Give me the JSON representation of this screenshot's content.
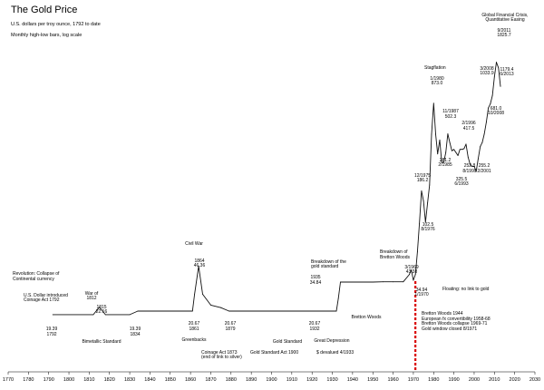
{
  "chart_data": {
    "type": "line",
    "title": "The Gold Price",
    "subtitle": "U.S. dollars per troy ounce, 1792 to date",
    "note": "Monthly high-low bars, log scale",
    "y_scale": "log",
    "xlim": [
      1770,
      2030
    ],
    "x_ticks": [
      1770,
      1780,
      1790,
      1800,
      1810,
      1820,
      1830,
      1840,
      1850,
      1860,
      1870,
      1880,
      1890,
      1900,
      1910,
      1920,
      1930,
      1940,
      1950,
      1960,
      1970,
      1980,
      1990,
      2000,
      2010,
      2020,
      2030
    ],
    "grid": false,
    "series": [
      {
        "x": [
          1792,
          1812,
          1815,
          1818,
          1830,
          1834,
          1836,
          1840,
          1850,
          1861,
          1862,
          1864,
          1866,
          1870,
          1875,
          1879,
          1880,
          1900,
          1910,
          1925,
          1927,
          1929,
          1932,
          1933,
          1934,
          1938,
          1940,
          1950,
          1955,
          1960,
          1965,
          1968,
          1969,
          1970,
          1971,
          1972,
          1973,
          1974,
          1975,
          1976,
          1977,
          1978,
          1979,
          1980,
          1981,
          1982,
          1983,
          1984,
          1985,
          1986,
          1987,
          1988,
          1989,
          1990,
          1991,
          1992,
          1993,
          1994,
          1995,
          1996,
          1997,
          1998,
          1999,
          2000,
          2001,
          2002,
          2003,
          2004,
          2005,
          2006,
          2007,
          2008,
          2009,
          2010,
          2011,
          2012,
          2013
        ],
        "y": [
          19.39,
          19.39,
          22.16,
          19.39,
          19.39,
          20.67,
          20.67,
          20.67,
          20.67,
          20.67,
          28,
          46.36,
          28,
          23,
          22,
          20.67,
          20.67,
          20.67,
          20.67,
          20.67,
          20.67,
          20.67,
          20.67,
          26,
          34.84,
          34.84,
          34.84,
          34.84,
          35,
          35,
          35,
          40,
          43.38,
          36,
          40,
          60,
          100,
          180,
          150,
          102.5,
          145,
          200,
          500,
          873,
          500,
          350,
          450,
          300,
          300,
          360,
          502.3,
          430,
          370,
          380,
          360,
          340,
          380,
          380,
          385,
          417.5,
          330,
          290,
          280,
          280,
          255.2,
          320,
          400,
          430,
          500,
          620,
          800,
          861,
          1000,
          1400,
          1825.7,
          1650,
          1179.4
        ]
      }
    ],
    "annotations": [
      "Revolution: Collapse of",
      "Continental currency",
      "U.S. Dollar introduced",
      "Coinage Act 1792",
      "19.39",
      "1792",
      "War of",
      "1812",
      "1815",
      "22.16",
      "Bimetallic Standard",
      "19.39",
      "1834",
      "Civil War",
      "1864",
      "46.36",
      "20.67",
      "1861",
      "20.67",
      "1879",
      "Greenbacks",
      "Coinage Act 1873",
      "(end of link to silver)",
      "Gold Standard",
      "Gold Standard Act 1900",
      "Breakdown of the",
      "gold standard",
      "1935",
      "34.84",
      "20.67",
      "1932",
      "Great Depression",
      "$ devalued 4/1933",
      "Bretton Woods",
      "Breakdown of",
      "Bretton Woods",
      "3/1969",
      "43.38",
      "34.94",
      "1/1970",
      "Floating: no link to gold",
      "Bretton Woods 1944",
      "European fx convertibility 1958-68",
      "Bretton Woods collapse 1969-71",
      "Gold window closed 8/1971",
      "Stagflation",
      "1/1980",
      "873.0",
      "12/1975",
      "186.2",
      "102.5",
      "8/1976",
      "11/1987",
      "502.3",
      "281.2",
      "2/1985",
      "2/1996",
      "417.5",
      "325.5",
      "6/1993",
      "252.8",
      "8/1999",
      "255.2",
      "2/2001",
      "3/2008",
      "1033.9",
      "681.0",
      "10/2008",
      "Global Financial Crisis,",
      "Quantitative Easing",
      "9/2011",
      "1825.7",
      "1179.4",
      "6/2013"
    ]
  }
}
